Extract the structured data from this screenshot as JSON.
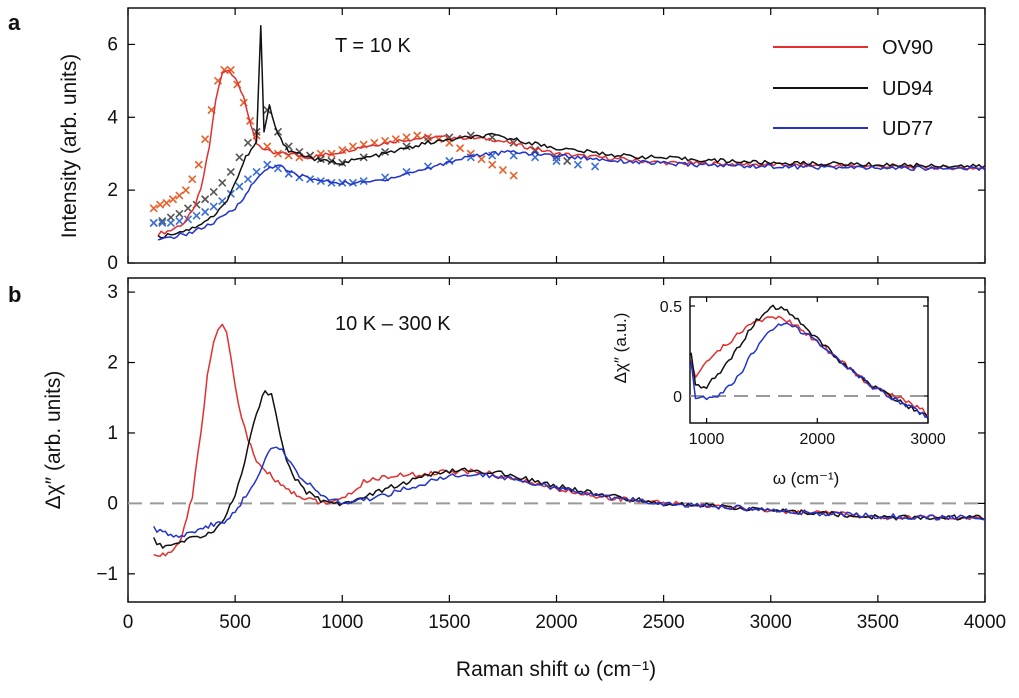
{
  "colors": {
    "OV90": "#e03030",
    "UD94": "#111111",
    "UD77": "#2233cc",
    "dashed": "#9a9a9a",
    "crossOV90": "#e8602a",
    "crossUD94": "#555555",
    "crossUD77": "#3a6fd6"
  },
  "chart_data": [
    {
      "panel": "a",
      "type": "line",
      "annotation": "T = 10 K",
      "xlabel": "",
      "ylabel": "Intensity (arb. units)",
      "xlim": [
        0,
        4000
      ],
      "ylim": [
        0,
        7
      ],
      "yticks": [
        0,
        2,
        4,
        6
      ],
      "legend": {
        "placement": "top-right",
        "entries": [
          "OV90",
          "UD94",
          "UD77"
        ]
      },
      "series": [
        {
          "name": "OV90",
          "color": "#e03030",
          "x": [
            140,
            200,
            260,
            300,
            340,
            380,
            410,
            440,
            470,
            500,
            540,
            570,
            600,
            640,
            680,
            750,
            850,
            950,
            1100,
            1250,
            1400,
            1550,
            1700,
            1850,
            2000,
            2200,
            2500,
            3000,
            3500,
            4000
          ],
          "y": [
            0.8,
            0.9,
            1.1,
            1.4,
            2.0,
            3.2,
            4.5,
            5.2,
            5.3,
            5.1,
            4.6,
            3.8,
            3.3,
            3.1,
            3.0,
            3.0,
            2.9,
            3.0,
            3.2,
            3.35,
            3.45,
            3.45,
            3.4,
            3.2,
            3.0,
            2.9,
            2.75,
            2.7,
            2.65,
            2.6
          ]
        },
        {
          "name": "UD94",
          "color": "#111111",
          "x": [
            140,
            200,
            300,
            400,
            450,
            500,
            550,
            600,
            620,
            635,
            660,
            700,
            750,
            800,
            900,
            1000,
            1200,
            1400,
            1600,
            1700,
            1800,
            2000,
            2300,
            2600,
            3000,
            3500,
            4000
          ],
          "y": [
            0.7,
            0.8,
            0.95,
            1.3,
            1.6,
            2.2,
            2.9,
            3.3,
            6.5,
            3.6,
            4.3,
            3.5,
            3.1,
            3.0,
            2.8,
            2.75,
            3.0,
            3.3,
            3.45,
            3.5,
            3.4,
            3.15,
            2.95,
            2.85,
            2.75,
            2.7,
            2.65
          ]
        },
        {
          "name": "UD77",
          "color": "#2233cc",
          "x": [
            140,
            200,
            300,
            400,
            500,
            550,
            600,
            650,
            700,
            750,
            800,
            900,
            1000,
            1100,
            1200,
            1400,
            1600,
            1800,
            2000,
            2300,
            2600,
            3000,
            3500,
            4000
          ],
          "y": [
            0.6,
            0.7,
            0.85,
            1.1,
            1.5,
            1.9,
            2.3,
            2.6,
            2.7,
            2.5,
            2.4,
            2.25,
            2.2,
            2.2,
            2.3,
            2.6,
            2.95,
            3.05,
            2.95,
            2.8,
            2.7,
            2.65,
            2.6,
            2.6
          ]
        }
      ],
      "markers": [
        {
          "of": "OV90",
          "color": "#e8602a",
          "x": [
            120,
            150,
            180,
            210,
            240,
            270,
            300,
            330,
            360,
            390,
            420,
            450,
            480,
            510,
            540,
            570,
            600,
            650,
            700,
            750,
            800,
            850,
            900,
            950,
            1000,
            1050,
            1100,
            1150,
            1200,
            1250,
            1300,
            1350,
            1400,
            1450,
            1500,
            1550,
            1600,
            1650,
            1700,
            1750,
            1800
          ],
          "y": [
            1.5,
            1.6,
            1.65,
            1.75,
            1.85,
            2.0,
            2.3,
            2.7,
            3.4,
            4.2,
            5.0,
            5.3,
            5.3,
            4.9,
            4.4,
            3.9,
            3.5,
            3.2,
            3.0,
            2.95,
            2.9,
            2.95,
            3.0,
            3.0,
            3.1,
            3.2,
            3.25,
            3.3,
            3.35,
            3.4,
            3.45,
            3.5,
            3.45,
            3.4,
            3.3,
            3.15,
            3.0,
            2.85,
            2.7,
            2.55,
            2.4
          ]
        },
        {
          "of": "UD94",
          "color": "#555555",
          "x": [
            120,
            160,
            200,
            240,
            280,
            320,
            360,
            400,
            440,
            480,
            520,
            560,
            600,
            650,
            700,
            750,
            800,
            850,
            900,
            950,
            1000,
            1100,
            1200,
            1300,
            1400,
            1500,
            1600,
            1700,
            1800,
            1900,
            2000,
            2050
          ],
          "y": [
            1.1,
            1.15,
            1.25,
            1.35,
            1.5,
            1.6,
            1.75,
            1.95,
            2.2,
            2.5,
            2.9,
            3.3,
            3.6,
            4.2,
            3.6,
            3.2,
            3.05,
            2.95,
            2.85,
            2.8,
            2.75,
            2.9,
            3.05,
            3.2,
            3.35,
            3.45,
            3.5,
            3.45,
            3.3,
            3.1,
            2.9,
            2.8
          ]
        },
        {
          "of": "UD77",
          "color": "#3a6fd6",
          "x": [
            120,
            160,
            200,
            240,
            280,
            320,
            360,
            400,
            440,
            480,
            520,
            560,
            600,
            650,
            700,
            750,
            800,
            850,
            900,
            950,
            1000,
            1050,
            1100,
            1200,
            1300,
            1400,
            1500,
            1600,
            1700,
            1800,
            1900,
            2000,
            2100,
            2180
          ],
          "y": [
            1.1,
            1.1,
            1.1,
            1.15,
            1.2,
            1.3,
            1.4,
            1.55,
            1.7,
            1.9,
            2.1,
            2.3,
            2.5,
            2.7,
            2.6,
            2.45,
            2.35,
            2.3,
            2.25,
            2.2,
            2.2,
            2.2,
            2.25,
            2.35,
            2.5,
            2.65,
            2.8,
            2.9,
            2.95,
            2.95,
            2.9,
            2.8,
            2.7,
            2.65
          ]
        }
      ]
    },
    {
      "panel": "b",
      "type": "line",
      "annotation": "10 K – 300 K",
      "xlabel": "Raman shift ω (cm⁻¹)",
      "ylabel": "Δχ″ (arb. units)",
      "xlim": [
        0,
        4000
      ],
      "ylim": [
        -1.4,
        3.2
      ],
      "xticks": [
        0,
        500,
        1000,
        1500,
        2000,
        2500,
        3000,
        3500,
        4000
      ],
      "yticks": [
        -1,
        0,
        1,
        2,
        3
      ],
      "ytick_labels": [
        "−1",
        "0",
        "1",
        "2",
        "3"
      ],
      "zero_line": "dashed",
      "series": [
        {
          "name": "OV90",
          "color": "#e03030",
          "x": [
            120,
            150,
            200,
            250,
            300,
            340,
            370,
            400,
            420,
            440,
            460,
            480,
            500,
            530,
            560,
            600,
            650,
            700,
            750,
            800,
            850,
            900,
            950,
            1000,
            1100,
            1200,
            1300,
            1400,
            1500,
            1600,
            1700,
            1800,
            2000,
            2200,
            2500,
            2800,
            3000,
            3300,
            3500,
            3800,
            4000
          ],
          "y": [
            -0.7,
            -0.75,
            -0.7,
            -0.5,
            0.1,
            1.0,
            1.8,
            2.3,
            2.5,
            2.55,
            2.4,
            2.1,
            1.7,
            1.2,
            0.9,
            0.6,
            0.45,
            0.3,
            0.2,
            0.1,
            0.05,
            0.02,
            0.0,
            0.05,
            0.3,
            0.38,
            0.4,
            0.42,
            0.45,
            0.45,
            0.42,
            0.35,
            0.2,
            0.1,
            0.0,
            -0.05,
            -0.1,
            -0.15,
            -0.2,
            -0.2,
            -0.2
          ]
        },
        {
          "name": "UD94",
          "color": "#111111",
          "x": [
            120,
            150,
            200,
            250,
            300,
            350,
            400,
            450,
            500,
            530,
            560,
            600,
            640,
            670,
            690,
            710,
            740,
            780,
            820,
            860,
            900,
            950,
            1000,
            1100,
            1200,
            1300,
            1400,
            1500,
            1600,
            1700,
            1800,
            2000,
            2200,
            2500,
            2800,
            3000,
            3300,
            3500,
            3800,
            4000
          ],
          "y": [
            -0.5,
            -0.6,
            -0.6,
            -0.55,
            -0.5,
            -0.45,
            -0.4,
            -0.2,
            0.1,
            0.4,
            0.8,
            1.3,
            1.6,
            1.55,
            1.3,
            1.0,
            0.6,
            0.35,
            0.2,
            0.1,
            0.05,
            0.0,
            0.0,
            0.1,
            0.2,
            0.3,
            0.4,
            0.45,
            0.47,
            0.45,
            0.38,
            0.25,
            0.12,
            0.0,
            -0.05,
            -0.1,
            -0.15,
            -0.2,
            -0.2,
            -0.2
          ]
        },
        {
          "name": "UD77",
          "color": "#2233cc",
          "x": [
            120,
            150,
            200,
            250,
            300,
            350,
            400,
            450,
            500,
            550,
            600,
            640,
            680,
            720,
            760,
            800,
            850,
            900,
            950,
            1000,
            1100,
            1200,
            1300,
            1400,
            1500,
            1600,
            1700,
            1800,
            2000,
            2200,
            2500,
            2800,
            3000,
            3300,
            3500,
            3800,
            4000
          ],
          "y": [
            -0.35,
            -0.4,
            -0.45,
            -0.45,
            -0.4,
            -0.35,
            -0.3,
            -0.25,
            -0.1,
            0.1,
            0.35,
            0.65,
            0.8,
            0.75,
            0.6,
            0.4,
            0.25,
            0.12,
            0.05,
            0.0,
            0.05,
            0.12,
            0.22,
            0.3,
            0.38,
            0.4,
            0.4,
            0.35,
            0.22,
            0.1,
            0.0,
            -0.05,
            -0.1,
            -0.15,
            -0.18,
            -0.2,
            -0.2
          ]
        }
      ]
    },
    {
      "panel": "b-inset",
      "type": "line",
      "xlabel": "ω (cm⁻¹)",
      "ylabel": "Δχ″ (a.u.)",
      "xlim": [
        850,
        3000
      ],
      "ylim": [
        -0.15,
        0.55
      ],
      "xticks": [
        1000,
        2000,
        3000
      ],
      "yticks": [
        0,
        0.5
      ],
      "zero_line": "dashed",
      "series": [
        {
          "name": "OV90",
          "color": "#e03030",
          "x": [
            860,
            900,
            1000,
            1100,
            1200,
            1300,
            1400,
            1500,
            1600,
            1700,
            1800,
            1900,
            2000,
            2100,
            2200,
            2300,
            2400,
            2500,
            2600,
            2700,
            2800,
            2900,
            3000
          ],
          "y": [
            0.2,
            0.1,
            0.18,
            0.25,
            0.3,
            0.35,
            0.4,
            0.42,
            0.45,
            0.42,
            0.4,
            0.35,
            0.3,
            0.25,
            0.2,
            0.15,
            0.1,
            0.05,
            0.02,
            0.0,
            -0.03,
            -0.06,
            -0.1
          ]
        },
        {
          "name": "UD94",
          "color": "#111111",
          "x": [
            860,
            900,
            1000,
            1100,
            1200,
            1300,
            1400,
            1500,
            1600,
            1700,
            1800,
            1900,
            2000,
            2100,
            2200,
            2300,
            2400,
            2500,
            2600,
            2700,
            2800,
            2900,
            3000
          ],
          "y": [
            0.25,
            0.05,
            0.05,
            0.12,
            0.2,
            0.28,
            0.38,
            0.45,
            0.5,
            0.48,
            0.44,
            0.38,
            0.32,
            0.26,
            0.2,
            0.15,
            0.1,
            0.05,
            0.02,
            -0.02,
            -0.05,
            -0.08,
            -0.12
          ]
        },
        {
          "name": "UD77",
          "color": "#2233cc",
          "x": [
            860,
            900,
            1000,
            1100,
            1200,
            1300,
            1400,
            1500,
            1600,
            1700,
            1800,
            1900,
            2000,
            2100,
            2200,
            2300,
            2400,
            2500,
            2600,
            2700,
            2800,
            2900,
            3000
          ],
          "y": [
            0.2,
            0.0,
            -0.02,
            0.0,
            0.05,
            0.12,
            0.22,
            0.3,
            0.38,
            0.4,
            0.38,
            0.34,
            0.3,
            0.25,
            0.2,
            0.15,
            0.1,
            0.05,
            0.02,
            -0.02,
            -0.05,
            -0.08,
            -0.12
          ]
        }
      ]
    }
  ]
}
